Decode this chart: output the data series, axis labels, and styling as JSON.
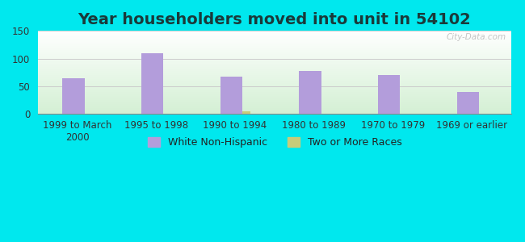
{
  "title": "Year householders moved into unit in 54102",
  "categories": [
    "1999 to March\n2000",
    "1995 to 1998",
    "1990 to 1994",
    "1980 to 1989",
    "1970 to 1979",
    "1969 or earlier"
  ],
  "white_non_hispanic": [
    65,
    110,
    68,
    78,
    70,
    39
  ],
  "two_or_more_races": [
    0,
    0,
    5,
    0,
    0,
    0
  ],
  "bar_color_white": "#b39ddb",
  "bar_color_two": "#c8cc7a",
  "bg_outer": "#00e8ee",
  "ylim": [
    0,
    150
  ],
  "yticks": [
    0,
    50,
    100,
    150
  ],
  "bar_width": 0.28,
  "small_bar_width": 0.1,
  "legend_labels": [
    "White Non-Hispanic",
    "Two or More Races"
  ],
  "title_fontsize": 14,
  "tick_fontsize": 8.5,
  "watermark": "City-Data.com",
  "title_color": "#1a3a3a"
}
